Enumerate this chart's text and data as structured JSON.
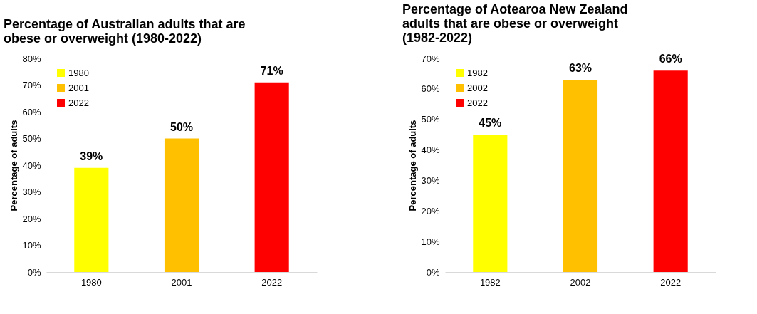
{
  "chart_data": [
    {
      "type": "bar",
      "title": "Percentage of Australian adults that are obese or overweight (1980-2022)",
      "ylabel": "Percentage of adults",
      "categories": [
        "1980",
        "2001",
        "2022"
      ],
      "series": [
        {
          "name": "1980",
          "color": "#ffff00",
          "values": [
            39,
            null,
            null
          ],
          "value_labels": [
            "39%",
            null,
            null
          ]
        },
        {
          "name": "2001",
          "color": "#ffc000",
          "values": [
            null,
            50,
            null
          ],
          "value_labels": [
            null,
            "50%",
            null
          ]
        },
        {
          "name": "2022",
          "color": "#ff0000",
          "values": [
            null,
            null,
            71
          ],
          "value_labels": [
            null,
            null,
            "71%"
          ]
        }
      ],
      "legend": "top left",
      "grid": false,
      "ylim": [
        0,
        80
      ],
      "yticks": [
        {
          "value": 0,
          "label": "0%"
        },
        {
          "value": 10,
          "label": "10%"
        },
        {
          "value": 20,
          "label": "20%"
        },
        {
          "value": 30,
          "label": "30%"
        },
        {
          "value": 40,
          "label": "40%"
        },
        {
          "value": 50,
          "label": "50%"
        },
        {
          "value": 60,
          "label": "60%"
        },
        {
          "value": 70,
          "label": "70%"
        },
        {
          "value": 80,
          "label": "80%"
        }
      ]
    },
    {
      "type": "bar",
      "title": "Percentage of Aotearoa New Zealand adults that are obese or overweight (1982-2022)",
      "ylabel": "Percentage of adults",
      "categories": [
        "1982",
        "2002",
        "2022"
      ],
      "series": [
        {
          "name": "1982",
          "color": "#ffff00",
          "values": [
            45,
            null,
            null
          ],
          "value_labels": [
            "45%",
            null,
            null
          ]
        },
        {
          "name": "2002",
          "color": "#ffc000",
          "values": [
            null,
            63,
            null
          ],
          "value_labels": [
            null,
            "63%",
            null
          ]
        },
        {
          "name": "2022",
          "color": "#ff0000",
          "values": [
            null,
            null,
            66
          ],
          "value_labels": [
            null,
            null,
            "66%"
          ]
        }
      ],
      "legend": "top left",
      "grid": false,
      "ylim": [
        0,
        70
      ],
      "yticks": [
        {
          "value": 0,
          "label": "0%"
        },
        {
          "value": 10,
          "label": "10%"
        },
        {
          "value": 20,
          "label": "20%"
        },
        {
          "value": 30,
          "label": "30%"
        },
        {
          "value": 40,
          "label": "40%"
        },
        {
          "value": 50,
          "label": "50%"
        },
        {
          "value": 60,
          "label": "60%"
        },
        {
          "value": 70,
          "label": "70%"
        }
      ]
    }
  ]
}
